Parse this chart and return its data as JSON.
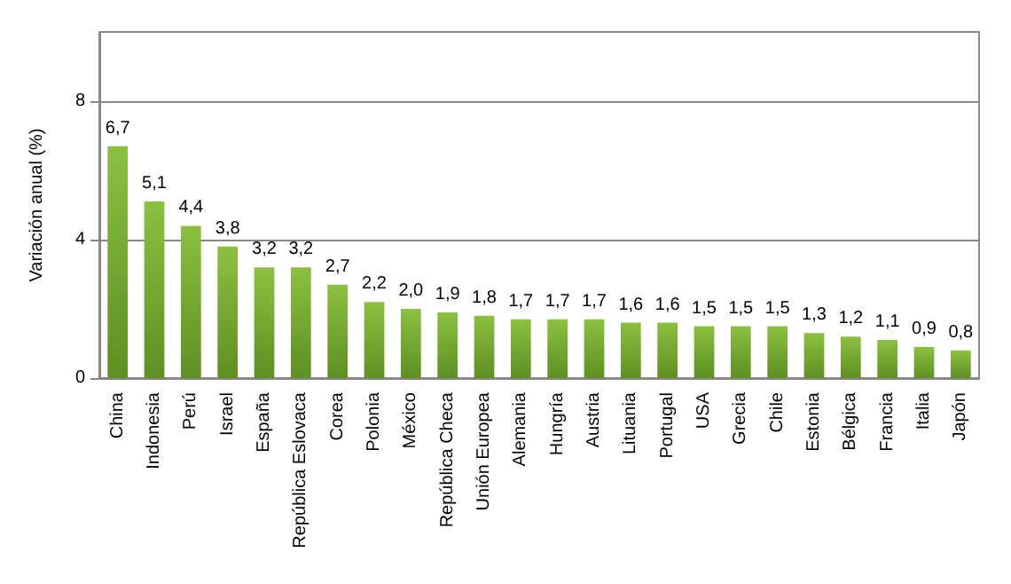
{
  "chart_data": {
    "type": "bar",
    "ylabel": "Variación anual (%)",
    "categories": [
      "China",
      "Indonesia",
      "Perú",
      "Israel",
      "España",
      "República Eslovaca",
      "Corea",
      "Polonia",
      "México",
      "República Checa",
      "Unión Europea",
      "Alemania",
      "Hungría",
      "Austria",
      "Lituania",
      "Portugal",
      "USA",
      "Grecia",
      "Chile",
      "Estonia",
      "Bélgica",
      "Francia",
      "Italia",
      "Japón"
    ],
    "values": [
      6.7,
      5.1,
      4.4,
      3.8,
      3.2,
      3.2,
      2.7,
      2.2,
      2.0,
      1.9,
      1.8,
      1.7,
      1.7,
      1.7,
      1.6,
      1.6,
      1.5,
      1.5,
      1.5,
      1.3,
      1.2,
      1.1,
      0.9,
      0.8
    ],
    "value_labels": [
      "6,7",
      "5,1",
      "4,4",
      "3,8",
      "3,2",
      "3,2",
      "2,7",
      "2,2",
      "2,0",
      "1,9",
      "1,8",
      "1,7",
      "1,7",
      "1,7",
      "1,6",
      "1,6",
      "1,5",
      "1,5",
      "1,5",
      "1,3",
      "1,2",
      "1,1",
      "0,9",
      "0,8"
    ],
    "color": "#8cc040",
    "ylim": [
      0,
      10
    ],
    "yticks": [
      0,
      4,
      8
    ],
    "grid": "y"
  }
}
